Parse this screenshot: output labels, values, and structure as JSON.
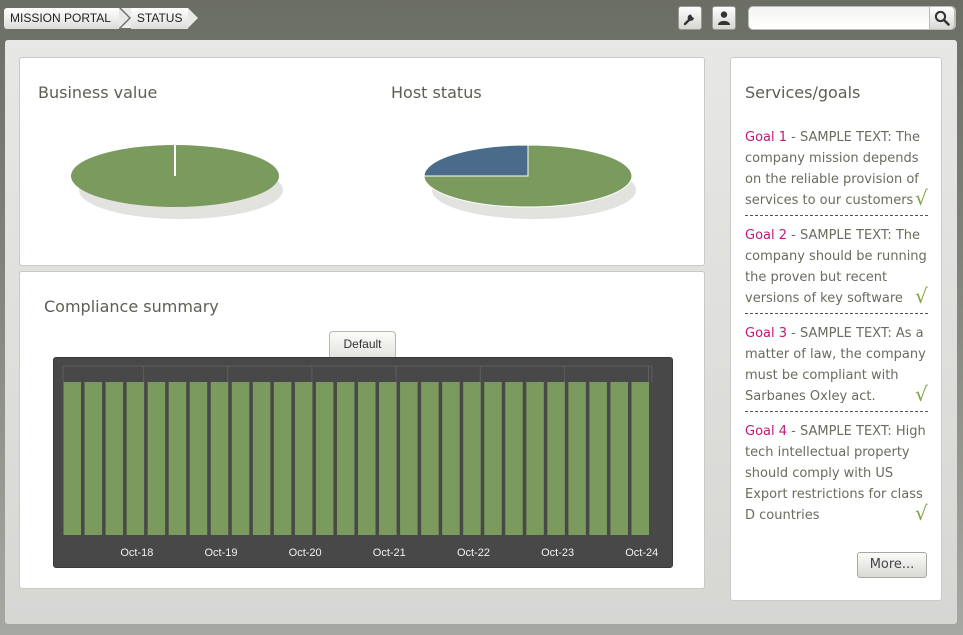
{
  "breadcrumb": {
    "items": [
      "MISSION PORTAL",
      "STATUS"
    ]
  },
  "toolbar": {
    "settings_icon": "wrench-icon",
    "user_icon": "user-icon"
  },
  "search": {
    "placeholder": "",
    "value": "",
    "icon": "search-icon"
  },
  "business_value": {
    "title": "Business value",
    "chart_data": {
      "type": "pie",
      "slices": [
        {
          "value": 100,
          "color": "#7a9a5e"
        }
      ]
    }
  },
  "host_status": {
    "title": "Host status",
    "chart_data": {
      "type": "pie",
      "slices": [
        {
          "value": 75,
          "color": "#7a9a5e"
        },
        {
          "value": 25,
          "color": "#4a6b8a"
        }
      ]
    }
  },
  "compliance": {
    "title": "Compliance summary",
    "view_tab": "Default",
    "chart_data": {
      "type": "bar",
      "bar_count": 28,
      "bar_color": "#7a9a5e",
      "values": [
        100,
        100,
        100,
        100,
        100,
        100,
        100,
        100,
        100,
        100,
        100,
        100,
        100,
        100,
        100,
        100,
        100,
        100,
        100,
        100,
        100,
        100,
        100,
        100,
        100,
        100,
        100,
        100
      ],
      "x_tick_labels": [
        "Oct-18",
        "Oct-19",
        "Oct-20",
        "Oct-21",
        "Oct-22",
        "Oct-23",
        "Oct-24"
      ],
      "ylim": [
        0,
        100
      ]
    }
  },
  "services": {
    "title": "Services/goals",
    "goals": [
      {
        "label": "Goal 1",
        "text": " - SAMPLE TEXT: The company mission depends on the reliable provision of services to our customers",
        "status_icon": "checkmark-icon"
      },
      {
        "label": "Goal 2",
        "text": " - SAMPLE TEXT: The company should be running the proven but recent versions of key software",
        "status_icon": "checkmark-icon"
      },
      {
        "label": "Goal 3",
        "text": " - SAMPLE TEXT: As a matter of law, the company must be compliant with Sarbanes Oxley act.",
        "status_icon": "checkmark-icon"
      },
      {
        "label": "Goal 4",
        "text": " - SAMPLE TEXT: High tech intellectual property should comply with US Export restrictions for class D countries",
        "status_icon": "checkmark-icon"
      }
    ],
    "check_glyph": "√",
    "more_label": "More..."
  }
}
